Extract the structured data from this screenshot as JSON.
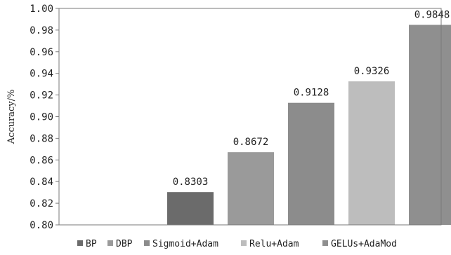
{
  "chart_data": {
    "type": "bar",
    "categories": [
      "BP",
      "DBP",
      "Sigmoid+Adam",
      "Relu+Adam",
      "GELUs+AdaMod"
    ],
    "values": [
      0.8303,
      0.8672,
      0.9128,
      0.9326,
      0.9848
    ],
    "value_labels": [
      "0.8303",
      "0.8672",
      "0.9128",
      "0.9326",
      "0.9848"
    ],
    "colors": [
      "#6b6b6b",
      "#9a9a9a",
      "#8c8c8c",
      "#bdbdbd",
      "#8f8f8f"
    ],
    "ylabel": "Accuracy/%",
    "ylim": [
      0.8,
      1.0
    ],
    "yticks": [
      "0.80",
      "0.82",
      "0.84",
      "0.86",
      "0.88",
      "0.90",
      "0.92",
      "0.94",
      "0.96",
      "0.98",
      "1.00"
    ],
    "legend_position": "bottom",
    "grid": false
  }
}
